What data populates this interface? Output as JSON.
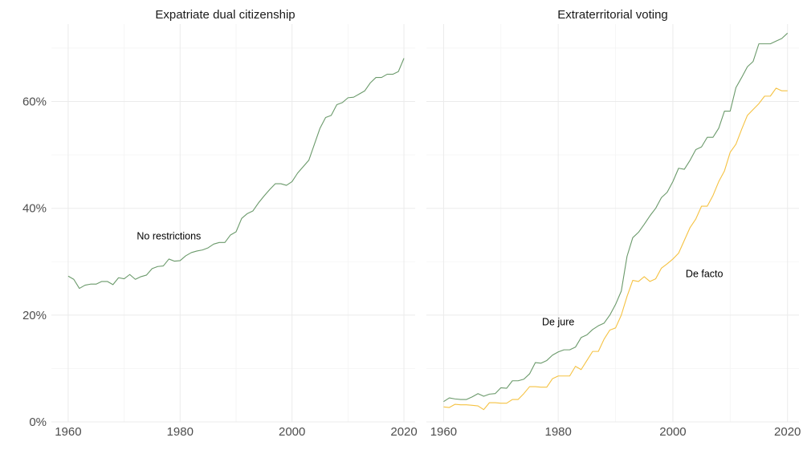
{
  "chart_data": [
    {
      "type": "line",
      "title": "Expatriate dual citizenship",
      "xlabel": "",
      "ylabel": "",
      "xlim": [
        1957,
        2022
      ],
      "ylim": [
        0,
        0.745
      ],
      "x_ticks": [
        1960,
        1980,
        2000,
        2020
      ],
      "x_tick_labels": [
        "1960",
        "1980",
        "2000",
        "2020"
      ],
      "y_ticks": [
        0,
        0.2,
        0.4,
        0.6
      ],
      "y_tick_labels": [
        "0%",
        "20%",
        "40%",
        "60%"
      ],
      "grid": true,
      "series": [
        {
          "name": "No restrictions",
          "color": "#6b9a6b",
          "x": [
            1960,
            1961,
            1962,
            1963,
            1964,
            1965,
            1966,
            1967,
            1968,
            1969,
            1970,
            1971,
            1972,
            1973,
            1974,
            1975,
            1976,
            1977,
            1978,
            1979,
            1980,
            1981,
            1982,
            1983,
            1984,
            1985,
            1986,
            1987,
            1988,
            1989,
            1990,
            1991,
            1992,
            1993,
            1994,
            1995,
            1996,
            1997,
            1998,
            1999,
            2000,
            2001,
            2002,
            2003,
            2004,
            2005,
            2006,
            2007,
            2008,
            2009,
            2010,
            2011,
            2012,
            2013,
            2014,
            2015,
            2016,
            2017,
            2018,
            2019,
            2020
          ],
          "y": [
            0.273,
            0.267,
            0.25,
            0.256,
            0.258,
            0.258,
            0.263,
            0.263,
            0.257,
            0.27,
            0.268,
            0.276,
            0.267,
            0.272,
            0.275,
            0.287,
            0.291,
            0.292,
            0.305,
            0.301,
            0.302,
            0.311,
            0.317,
            0.32,
            0.322,
            0.326,
            0.333,
            0.336,
            0.336,
            0.35,
            0.356,
            0.381,
            0.39,
            0.395,
            0.41,
            0.423,
            0.435,
            0.446,
            0.446,
            0.443,
            0.45,
            0.466,
            0.478,
            0.49,
            0.52,
            0.55,
            0.57,
            0.574,
            0.594,
            0.598,
            0.607,
            0.608,
            0.614,
            0.62,
            0.635,
            0.645,
            0.645,
            0.651,
            0.651,
            0.656,
            0.681
          ]
        }
      ],
      "annotations": [
        {
          "text": "No restrictions",
          "x": 1978,
          "y": 0.348
        }
      ]
    },
    {
      "type": "line",
      "title": "Extraterritorial voting",
      "xlabel": "",
      "ylabel": "",
      "xlim": [
        1957,
        2022
      ],
      "ylim": [
        0,
        0.745
      ],
      "x_ticks": [
        1960,
        1980,
        2000,
        2020
      ],
      "x_tick_labels": [
        "1960",
        "1980",
        "2000",
        "2020"
      ],
      "y_ticks": [
        0,
        0.2,
        0.4,
        0.6
      ],
      "grid": true,
      "series": [
        {
          "name": "De jure",
          "color": "#6b9a6b",
          "x": [
            1960,
            1961,
            1962,
            1963,
            1964,
            1965,
            1966,
            1967,
            1968,
            1969,
            1970,
            1971,
            1972,
            1973,
            1974,
            1975,
            1976,
            1977,
            1978,
            1979,
            1980,
            1981,
            1982,
            1983,
            1984,
            1985,
            1986,
            1987,
            1988,
            1989,
            1990,
            1991,
            1992,
            1993,
            1994,
            1995,
            1996,
            1997,
            1998,
            1999,
            2000,
            2001,
            2002,
            2003,
            2004,
            2005,
            2006,
            2007,
            2008,
            2009,
            2010,
            2011,
            2012,
            2013,
            2014,
            2015,
            2016,
            2017,
            2018,
            2019,
            2020
          ],
          "y": [
            0.038,
            0.045,
            0.043,
            0.042,
            0.042,
            0.047,
            0.053,
            0.048,
            0.052,
            0.053,
            0.064,
            0.063,
            0.077,
            0.077,
            0.08,
            0.09,
            0.111,
            0.11,
            0.115,
            0.125,
            0.131,
            0.135,
            0.135,
            0.14,
            0.158,
            0.163,
            0.173,
            0.18,
            0.185,
            0.2,
            0.22,
            0.245,
            0.31,
            0.345,
            0.355,
            0.37,
            0.386,
            0.4,
            0.42,
            0.43,
            0.45,
            0.475,
            0.473,
            0.49,
            0.51,
            0.515,
            0.533,
            0.533,
            0.55,
            0.582,
            0.582,
            0.626,
            0.645,
            0.665,
            0.675,
            0.708,
            0.708,
            0.708,
            0.713,
            0.718,
            0.728
          ]
        },
        {
          "name": "De facto",
          "color": "#f5c242",
          "x": [
            1960,
            1961,
            1962,
            1963,
            1964,
            1965,
            1966,
            1967,
            1968,
            1969,
            1970,
            1971,
            1972,
            1973,
            1974,
            1975,
            1976,
            1977,
            1978,
            1979,
            1980,
            1981,
            1982,
            1983,
            1984,
            1985,
            1986,
            1987,
            1988,
            1989,
            1990,
            1991,
            1992,
            1993,
            1994,
            1995,
            1996,
            1997,
            1998,
            1999,
            2000,
            2001,
            2002,
            2003,
            2004,
            2005,
            2006,
            2007,
            2008,
            2009,
            2010,
            2011,
            2012,
            2013,
            2014,
            2015,
            2016,
            2017,
            2018,
            2019,
            2020
          ],
          "y": [
            0.028,
            0.027,
            0.033,
            0.032,
            0.032,
            0.031,
            0.03,
            0.023,
            0.036,
            0.036,
            0.035,
            0.035,
            0.042,
            0.042,
            0.053,
            0.066,
            0.066,
            0.065,
            0.065,
            0.081,
            0.086,
            0.086,
            0.086,
            0.104,
            0.098,
            0.115,
            0.132,
            0.132,
            0.155,
            0.172,
            0.176,
            0.2,
            0.235,
            0.265,
            0.263,
            0.272,
            0.263,
            0.268,
            0.288,
            0.296,
            0.305,
            0.316,
            0.34,
            0.364,
            0.38,
            0.404,
            0.404,
            0.424,
            0.45,
            0.47,
            0.505,
            0.52,
            0.548,
            0.574,
            0.585,
            0.596,
            0.61,
            0.61,
            0.625,
            0.62,
            0.62
          ]
        }
      ],
      "annotations": [
        {
          "text": "De jure",
          "x": 1980,
          "y": 0.187
        },
        {
          "text": "De facto",
          "x": 2005.5,
          "y": 0.277
        }
      ]
    }
  ]
}
